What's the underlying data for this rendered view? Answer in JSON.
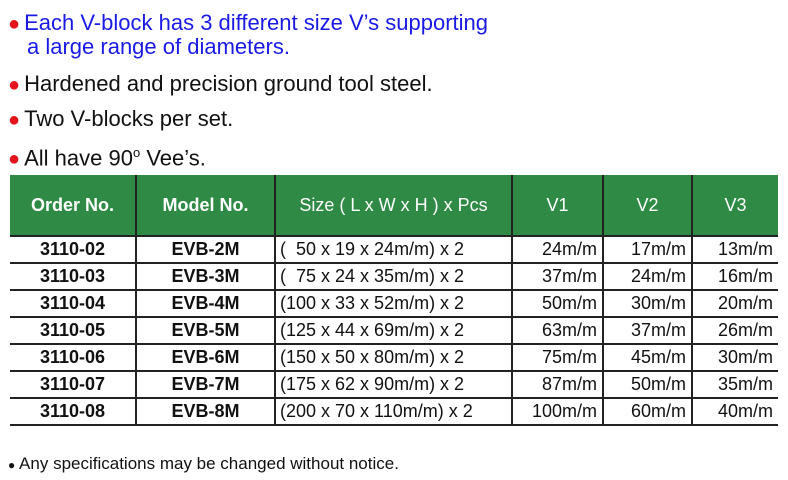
{
  "features": [
    {
      "text": "Each V-block has 3 different size V’s supporting",
      "text2": "a large range of diameters.",
      "color": "#1a1ae6"
    },
    {
      "text": "Hardened and precision ground tool steel."
    },
    {
      "text": "Two V-blocks per set."
    },
    {
      "text_pre": "All have 90",
      "sup": "o",
      "text_post": "Vee’s."
    }
  ],
  "table": {
    "headers": [
      "Order No.",
      "Model No.",
      "Size ( L x W x H ) x Pcs",
      "V1",
      "V2",
      "V3"
    ],
    "rows": [
      [
        "3110-02",
        "EVB-2M",
        "(  50 x 19 x 24m/m) x 2",
        "24m/m",
        "17m/m",
        "13m/m"
      ],
      [
        "3110-03",
        "EVB-3M",
        "(  75 x 24 x 35m/m) x 2",
        "37m/m",
        "24m/m",
        "16m/m"
      ],
      [
        "3110-04",
        "EVB-4M",
        "(100 x 33 x 52m/m) x 2",
        "50m/m",
        "30m/m",
        "20m/m"
      ],
      [
        "3110-05",
        "EVB-5M",
        "(125 x 44 x 69m/m) x 2",
        "63m/m",
        "37m/m",
        "26m/m"
      ],
      [
        "3110-06",
        "EVB-6M",
        "(150 x 50 x 80m/m) x 2",
        "75m/m",
        "45m/m",
        "30m/m"
      ],
      [
        "3110-07",
        "EVB-7M",
        "(175 x 62 x 90m/m) x 2",
        "87m/m",
        "50m/m",
        "35m/m"
      ],
      [
        "3110-08",
        "EVB-8M",
        "(200 x 70 x 110m/m) x 2",
        "100m/m",
        "60m/m",
        "40m/m"
      ]
    ],
    "header_color": "#2f8a45"
  },
  "footnote": "Any specifications may be changed without notice.",
  "bullet_color": "#e3141b"
}
